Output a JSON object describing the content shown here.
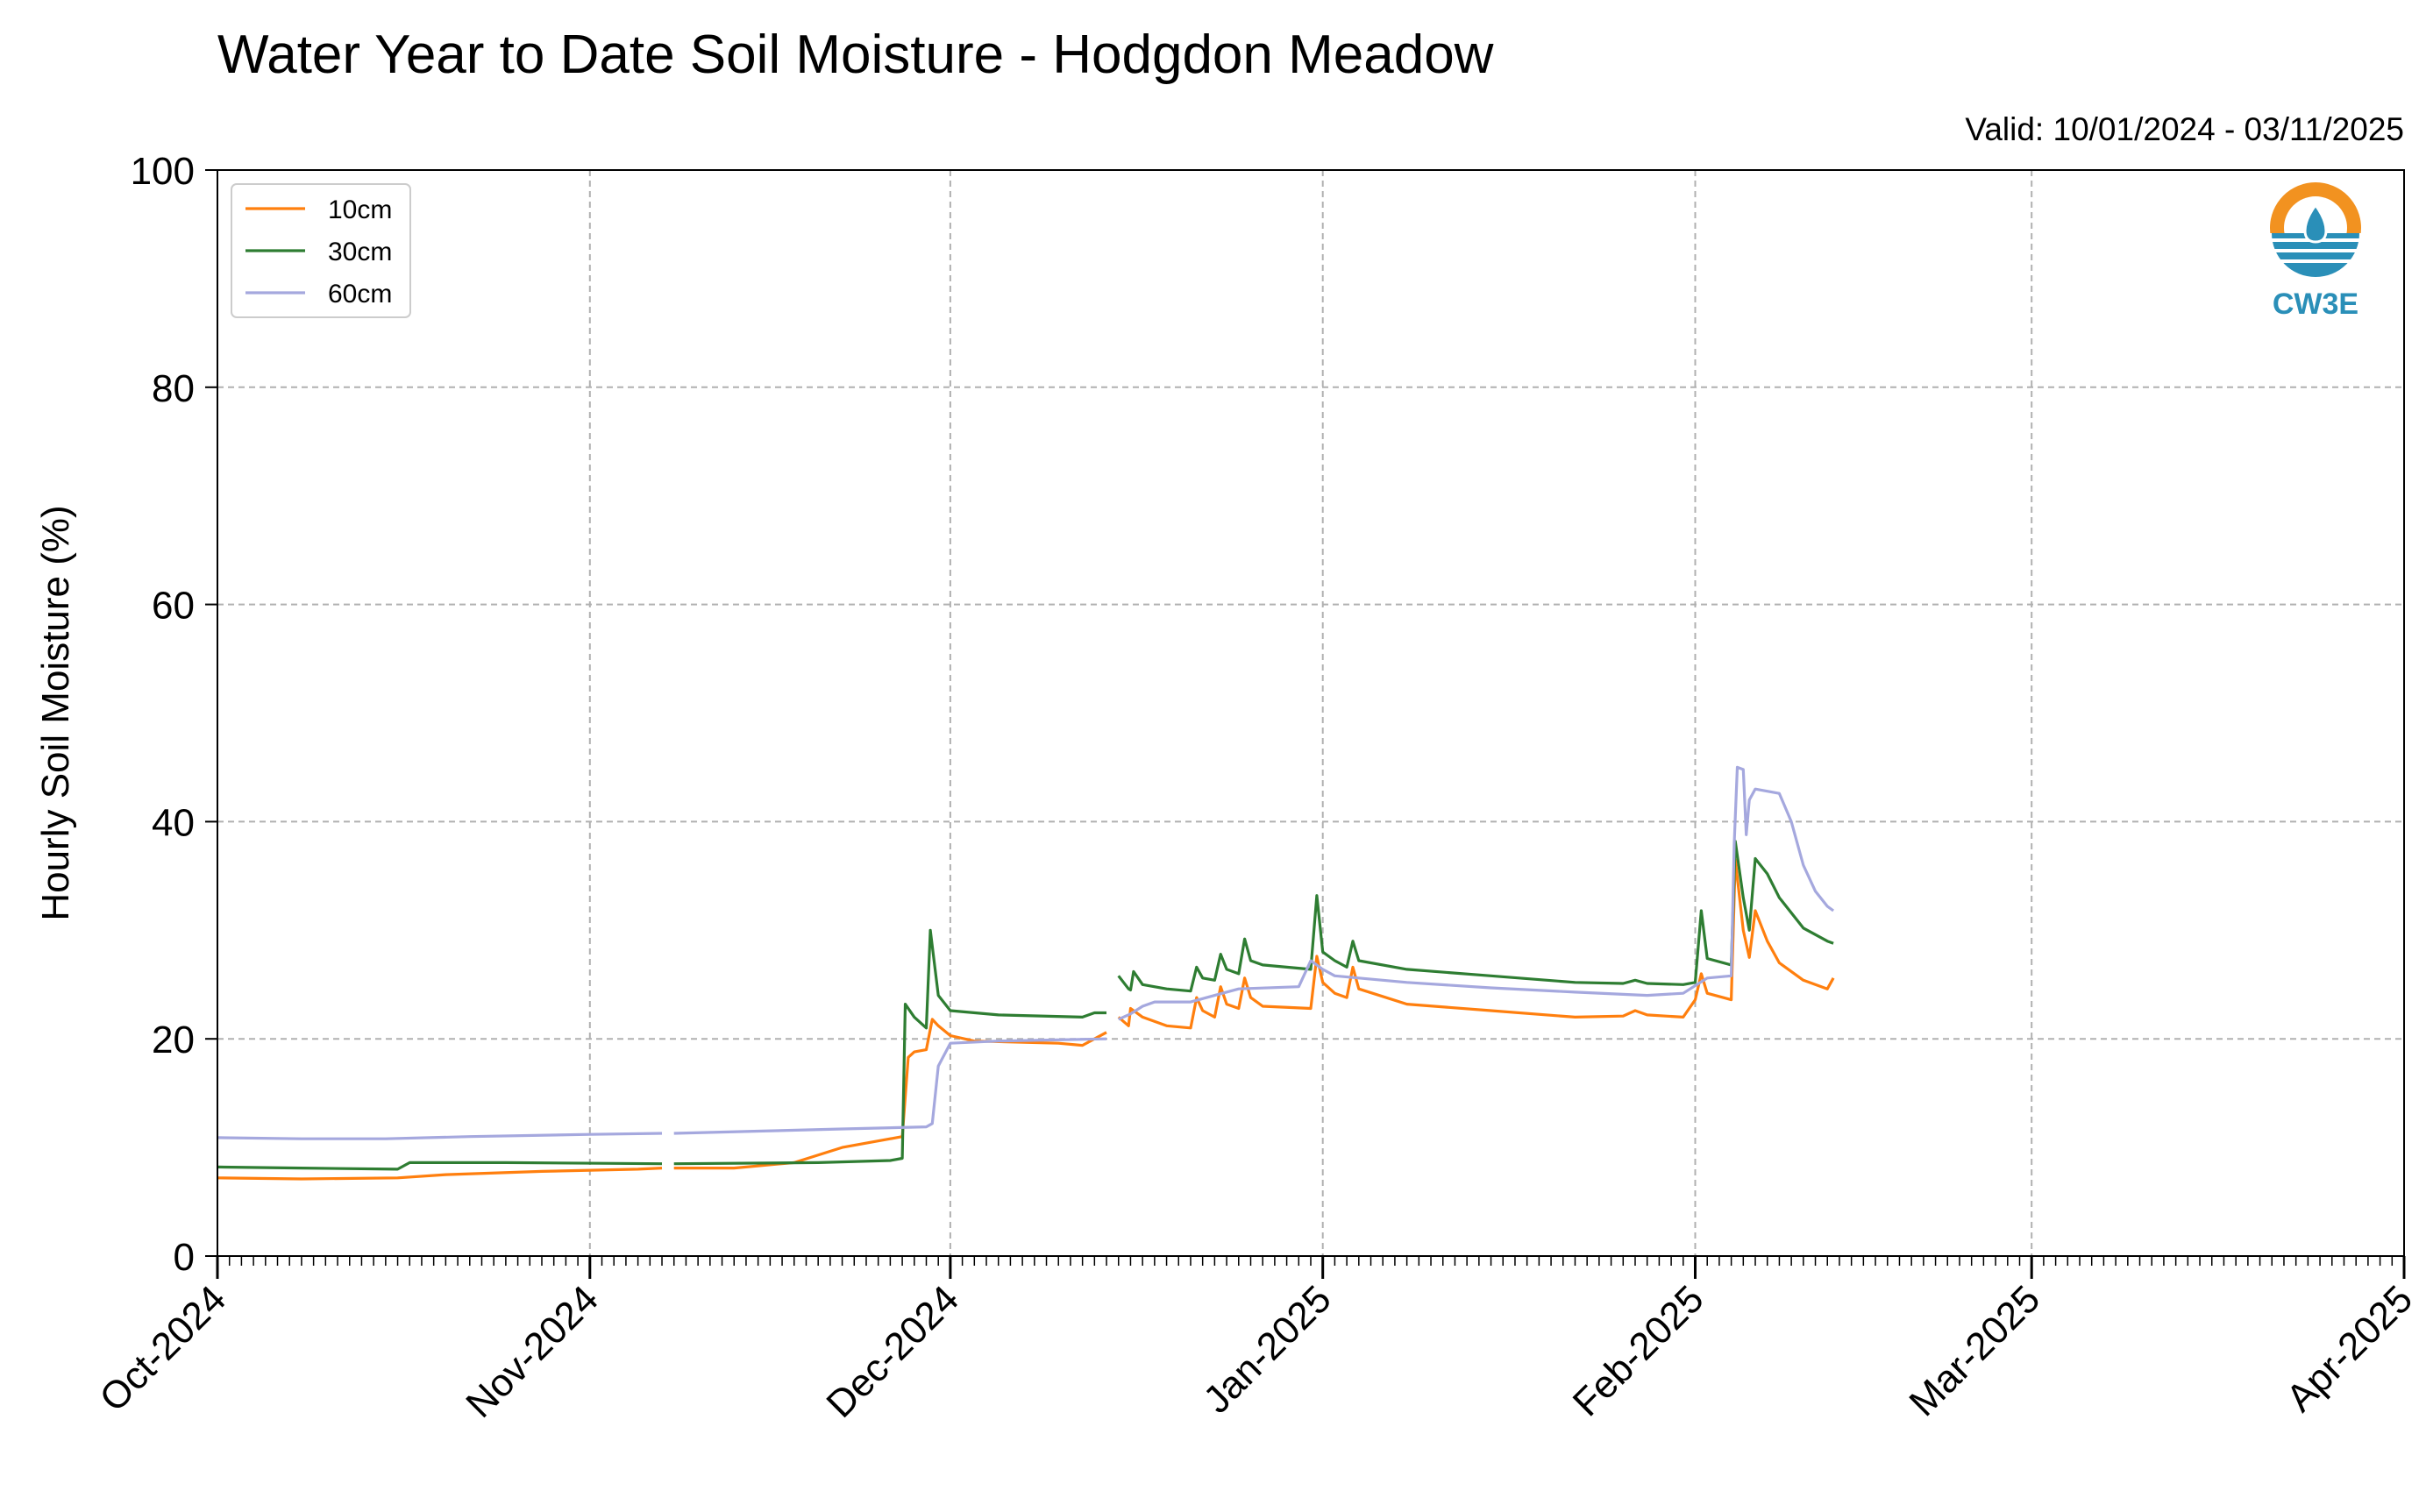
{
  "chart_data": {
    "type": "line",
    "title": "Water Year to Date Soil Moisture - Hodgdon Meadow",
    "subtitle": "Valid: 10/01/2024 - 03/11/2025",
    "ylabel": "Hourly Soil Moisture (%)",
    "xlabel": "",
    "xlim": [
      "2024-10-01",
      "2025-04-01"
    ],
    "ylim": [
      0,
      100
    ],
    "yticks": [
      0,
      20,
      40,
      60,
      80,
      100
    ],
    "xticks": [
      {
        "date": "2024-10-01",
        "label": "Oct-2024"
      },
      {
        "date": "2024-11-01",
        "label": "Nov-2024"
      },
      {
        "date": "2024-12-01",
        "label": "Dec-2024"
      },
      {
        "date": "2025-01-01",
        "label": "Jan-2025"
      },
      {
        "date": "2025-02-01",
        "label": "Feb-2025"
      },
      {
        "date": "2025-03-01",
        "label": "Mar-2025"
      },
      {
        "date": "2025-04-01",
        "label": "Apr-2025"
      }
    ],
    "grid": true,
    "legend": {
      "location": "top-left"
    },
    "logo": {
      "text": "CW3E",
      "color": "#2a8fb8",
      "accent": "#f29220"
    },
    "series": [
      {
        "name": "10cm",
        "color": "#ff7f0e",
        "segments": [
          [
            [
              "2024-10-01",
              7.2
            ],
            [
              "2024-10-08",
              7.1
            ],
            [
              "2024-10-16",
              7.2
            ],
            [
              "2024-10-20",
              7.5
            ],
            [
              "2024-10-28",
              7.8
            ],
            [
              "2024-11-05",
              8.0
            ],
            [
              "2024-11-07",
              8.1
            ]
          ],
          [
            [
              "2024-11-08",
              8.1
            ],
            [
              "2024-11-13",
              8.1
            ],
            [
              "2024-11-18",
              8.6
            ],
            [
              "2024-11-22",
              10.0
            ],
            [
              "2024-11-27",
              11.0
            ],
            [
              "2024-11-27T12:00",
              18.3
            ],
            [
              "2024-11-28",
              18.8
            ],
            [
              "2024-11-29",
              19.0
            ],
            [
              "2024-11-29T12:00",
              21.8
            ],
            [
              "2024-11-30",
              21.2
            ],
            [
              "2024-12-01",
              20.3
            ],
            [
              "2024-12-03",
              19.8
            ],
            [
              "2024-12-10",
              19.6
            ],
            [
              "2024-12-12",
              19.4
            ],
            [
              "2024-12-13",
              20.0
            ],
            [
              "2024-12-14",
              20.6
            ]
          ],
          [
            [
              "2024-12-15",
              22.0
            ],
            [
              "2024-12-15T20:00",
              21.2
            ],
            [
              "2024-12-16",
              22.8
            ],
            [
              "2024-12-17",
              22.0
            ],
            [
              "2024-12-19",
              21.2
            ],
            [
              "2024-12-21",
              21.0
            ],
            [
              "2024-12-21T12:00",
              23.8
            ],
            [
              "2024-12-22",
              22.6
            ],
            [
              "2024-12-23",
              22.0
            ],
            [
              "2024-12-23T12:00",
              24.8
            ],
            [
              "2024-12-24",
              23.2
            ],
            [
              "2024-12-25",
              22.8
            ],
            [
              "2024-12-25T12:00",
              25.6
            ],
            [
              "2024-12-26",
              23.8
            ],
            [
              "2024-12-27",
              23.0
            ],
            [
              "2024-12-31",
              22.8
            ],
            [
              "2024-12-31T12:00",
              27.6
            ],
            [
              "2025-01-01",
              25.2
            ],
            [
              "2025-01-02",
              24.2
            ],
            [
              "2025-01-03",
              23.8
            ],
            [
              "2025-01-03T12:00",
              26.6
            ],
            [
              "2025-01-04",
              24.6
            ],
            [
              "2025-01-08",
              23.2
            ],
            [
              "2025-01-15",
              22.6
            ],
            [
              "2025-01-22",
              22.0
            ],
            [
              "2025-01-26",
              22.1
            ],
            [
              "2025-01-27",
              22.6
            ],
            [
              "2025-01-28",
              22.2
            ],
            [
              "2025-01-31",
              22.0
            ],
            [
              "2025-02-01",
              23.6
            ],
            [
              "2025-02-01T12:00",
              26.0
            ],
            [
              "2025-02-02",
              24.2
            ],
            [
              "2025-02-04",
              23.6
            ],
            [
              "2025-02-04T08:00",
              36.5
            ],
            [
              "2025-02-05",
              30.0
            ],
            [
              "2025-02-05T12:00",
              27.5
            ],
            [
              "2025-02-06",
              31.8
            ],
            [
              "2025-02-07",
              29.0
            ],
            [
              "2025-02-08",
              27.0
            ],
            [
              "2025-02-10",
              25.4
            ],
            [
              "2025-02-12",
              24.6
            ],
            [
              "2025-02-12T12:00",
              25.6
            ]
          ]
        ]
      },
      {
        "name": "30cm",
        "color": "#2e7d32",
        "segments": [
          [
            [
              "2024-10-01",
              8.2
            ],
            [
              "2024-10-08",
              8.1
            ],
            [
              "2024-10-16",
              8.0
            ],
            [
              "2024-10-17",
              8.6
            ],
            [
              "2024-10-25",
              8.6
            ],
            [
              "2024-11-07",
              8.5
            ]
          ],
          [
            [
              "2024-11-08",
              8.5
            ],
            [
              "2024-11-20",
              8.6
            ],
            [
              "2024-11-26",
              8.8
            ],
            [
              "2024-11-27",
              9.0
            ],
            [
              "2024-11-27T06:00",
              23.2
            ],
            [
              "2024-11-28",
              22.0
            ],
            [
              "2024-11-29",
              21.0
            ],
            [
              "2024-11-29T08:00",
              30.0
            ],
            [
              "2024-11-30",
              24.0
            ],
            [
              "2024-12-01",
              22.6
            ],
            [
              "2024-12-05",
              22.2
            ],
            [
              "2024-12-12",
              22.0
            ],
            [
              "2024-12-13",
              22.4
            ],
            [
              "2024-12-14",
              22.4
            ]
          ],
          [
            [
              "2024-12-15",
              25.8
            ],
            [
              "2024-12-15T20:00",
              24.6
            ],
            [
              "2024-12-16",
              24.5
            ],
            [
              "2024-12-16T06:00",
              26.2
            ],
            [
              "2024-12-17",
              25.0
            ],
            [
              "2024-12-19",
              24.6
            ],
            [
              "2024-12-21",
              24.4
            ],
            [
              "2024-12-21T12:00",
              26.6
            ],
            [
              "2024-12-22",
              25.6
            ],
            [
              "2024-12-23",
              25.4
            ],
            [
              "2024-12-23T12:00",
              27.8
            ],
            [
              "2024-12-24",
              26.4
            ],
            [
              "2024-12-25",
              26.0
            ],
            [
              "2024-12-25T12:00",
              29.2
            ],
            [
              "2024-12-26",
              27.2
            ],
            [
              "2024-12-27",
              26.8
            ],
            [
              "2024-12-31",
              26.4
            ],
            [
              "2024-12-31T12:00",
              33.2
            ],
            [
              "2025-01-01",
              28.0
            ],
            [
              "2025-01-02",
              27.2
            ],
            [
              "2025-01-03",
              26.6
            ],
            [
              "2025-01-03T12:00",
              29.0
            ],
            [
              "2025-01-04",
              27.2
            ],
            [
              "2025-01-08",
              26.4
            ],
            [
              "2025-01-15",
              25.8
            ],
            [
              "2025-01-22",
              25.2
            ],
            [
              "2025-01-26",
              25.1
            ],
            [
              "2025-01-27",
              25.4
            ],
            [
              "2025-01-28",
              25.1
            ],
            [
              "2025-01-31",
              25.0
            ],
            [
              "2025-02-01",
              25.2
            ],
            [
              "2025-02-01T12:00",
              31.8
            ],
            [
              "2025-02-02",
              27.4
            ],
            [
              "2025-02-04",
              26.8
            ],
            [
              "2025-02-04T08:00",
              38.2
            ],
            [
              "2025-02-05",
              33.0
            ],
            [
              "2025-02-05T12:00",
              30.0
            ],
            [
              "2025-02-06",
              36.6
            ],
            [
              "2025-02-07",
              35.2
            ],
            [
              "2025-02-08",
              33.0
            ],
            [
              "2025-02-10",
              30.2
            ],
            [
              "2025-02-12",
              29.0
            ],
            [
              "2025-02-12T12:00",
              28.8
            ]
          ]
        ]
      },
      {
        "name": "60cm",
        "color": "#a5a8de",
        "segments": [
          [
            [
              "2024-10-01",
              10.9
            ],
            [
              "2024-10-08",
              10.8
            ],
            [
              "2024-10-15",
              10.8
            ],
            [
              "2024-10-22",
              11.0
            ],
            [
              "2024-11-01",
              11.2
            ],
            [
              "2024-11-07",
              11.3
            ]
          ],
          [
            [
              "2024-11-08",
              11.3
            ],
            [
              "2024-11-15",
              11.5
            ],
            [
              "2024-11-22",
              11.7
            ],
            [
              "2024-11-29",
              11.9
            ],
            [
              "2024-11-29T12:00",
              12.2
            ],
            [
              "2024-11-30",
              17.5
            ],
            [
              "2024-12-01",
              19.6
            ],
            [
              "2024-12-05",
              19.8
            ],
            [
              "2024-12-14",
              20.0
            ]
          ],
          [
            [
              "2024-12-15",
              21.8
            ],
            [
              "2024-12-16",
              22.3
            ],
            [
              "2024-12-17",
              23.0
            ],
            [
              "2024-12-18",
              23.4
            ],
            [
              "2024-12-21",
              23.4
            ],
            [
              "2024-12-23",
              24.0
            ],
            [
              "2024-12-25",
              24.6
            ],
            [
              "2024-12-30",
              24.8
            ],
            [
              "2024-12-31",
              27.2
            ],
            [
              "2025-01-01",
              26.4
            ],
            [
              "2025-01-02",
              25.8
            ],
            [
              "2025-01-04",
              25.6
            ],
            [
              "2025-01-08",
              25.2
            ],
            [
              "2025-01-15",
              24.7
            ],
            [
              "2025-01-22",
              24.3
            ],
            [
              "2025-01-28",
              24.0
            ],
            [
              "2025-01-31",
              24.2
            ],
            [
              "2025-02-02",
              25.6
            ],
            [
              "2025-02-04",
              25.8
            ],
            [
              "2025-02-04T06:00",
              38.0
            ],
            [
              "2025-02-04T12:00",
              45.0
            ],
            [
              "2025-02-05",
              44.8
            ],
            [
              "2025-02-05T06:00",
              38.8
            ],
            [
              "2025-02-05T12:00",
              42.0
            ],
            [
              "2025-02-06",
              43.0
            ],
            [
              "2025-02-07",
              42.8
            ],
            [
              "2025-02-08",
              42.6
            ],
            [
              "2025-02-09",
              40.0
            ],
            [
              "2025-02-10",
              36.0
            ],
            [
              "2025-02-11",
              33.6
            ],
            [
              "2025-02-12",
              32.2
            ],
            [
              "2025-02-12T12:00",
              31.8
            ]
          ]
        ]
      }
    ]
  }
}
